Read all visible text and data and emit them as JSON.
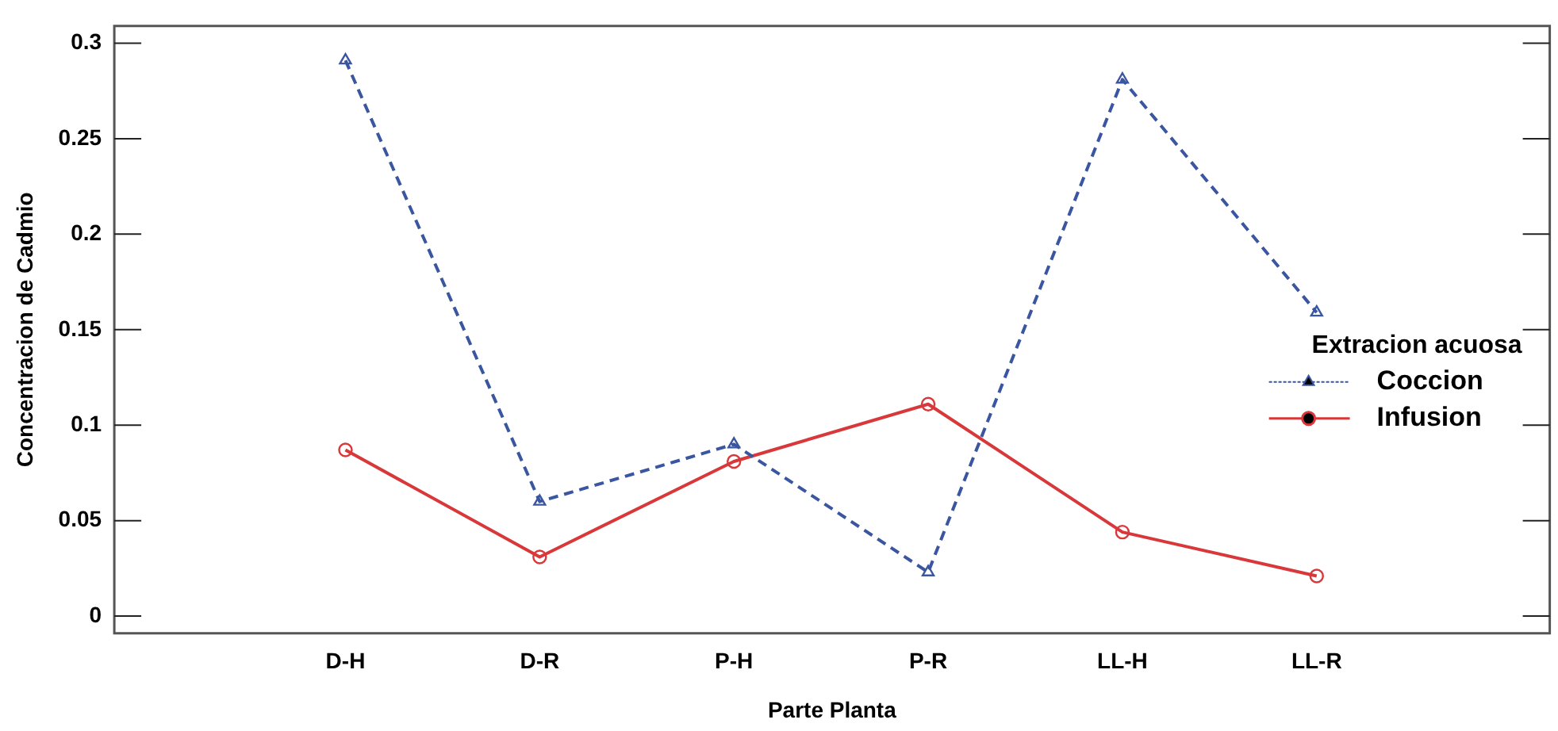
{
  "chart_data": {
    "type": "line",
    "xlabel": "Parte Planta",
    "ylabel": "Concentracion de Cadmio",
    "legend_title": "Extracion acuosa",
    "categories": [
      "D-H",
      "D-R",
      "P-H",
      "P-R",
      "LL-H",
      "LL-R"
    ],
    "series": [
      {
        "name": "Coccion",
        "color": "#3a56a0",
        "marker": "triangle",
        "line_style": "dashed",
        "values": [
          0.291,
          0.06,
          0.09,
          0.023,
          0.281,
          0.159
        ]
      },
      {
        "name": "Infusion",
        "color": "#d9383a",
        "marker": "circle",
        "line_style": "solid",
        "values": [
          0.087,
          0.031,
          0.081,
          0.111,
          0.044,
          0.021
        ]
      }
    ],
    "ylim": [
      -0.009,
      0.309
    ],
    "yticks": [
      0,
      0.05,
      0.1,
      0.15,
      0.2,
      0.25,
      0.3
    ],
    "grid": false,
    "legend": "right"
  }
}
